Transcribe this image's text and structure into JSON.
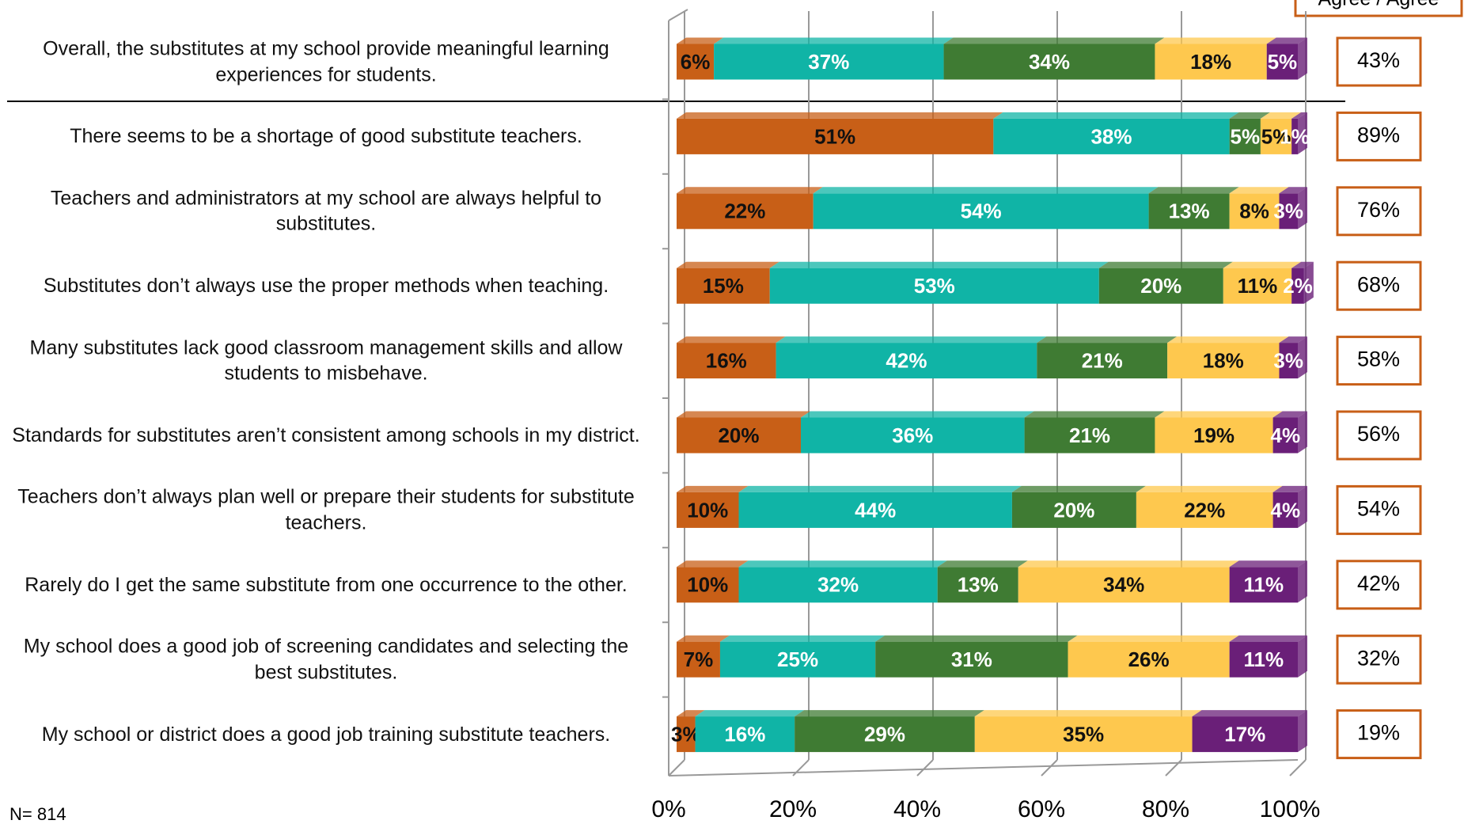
{
  "chart_data": {
    "type": "stacked-bar",
    "orientation": "horizontal",
    "column_header": "Agree / Agree",
    "note": "N= 814",
    "categories": [
      "Overall, the substitutes at my school provide meaningful learning experiences for students.",
      "There seems to be a shortage of good substitute teachers.",
      "Teachers and administrators at my school are always helpful to substitutes.",
      "Substitutes don’t always use the proper methods when teaching.",
      "Many substitutes lack good classroom management skills and allow students to misbehave.",
      "Standards for substitutes aren’t consistent among schools in my district.",
      "Teachers don’t always plan well or prepare their students for substitute teachers.",
      "Rarely do I get the same substitute from one occurrence to the other.",
      "My school does a good job of screening candidates and selecting the best substitutes.",
      "My school or district does a good job training substitute teachers."
    ],
    "series": [
      {
        "color": "#c85f17",
        "values": [
          6,
          51,
          22,
          15,
          16,
          20,
          10,
          10,
          7,
          3
        ],
        "value_labels": [
          "6%",
          "51%",
          "22%",
          "15%",
          "16%",
          "20%",
          "10%",
          "10%",
          "7%",
          "3%"
        ]
      },
      {
        "color": "#10b4a6",
        "values": [
          37,
          38,
          54,
          53,
          42,
          36,
          44,
          32,
          25,
          16
        ],
        "value_labels": [
          "37%",
          "38%",
          "54%",
          "53%",
          "42%",
          "36%",
          "44%",
          "32%",
          "25%",
          "16%"
        ]
      },
      {
        "color": "#3f7b33",
        "values": [
          34,
          5,
          13,
          20,
          21,
          21,
          20,
          13,
          31,
          29
        ],
        "value_labels": [
          "34%",
          "5%",
          "13%",
          "20%",
          "21%",
          "21%",
          "20%",
          "13%",
          "31%",
          "29%"
        ]
      },
      {
        "color": "#fec84e",
        "values": [
          18,
          5,
          8,
          11,
          18,
          19,
          22,
          34,
          26,
          35
        ],
        "value_labels": [
          "18%",
          "5%",
          "8%",
          "11%",
          "18%",
          "19%",
          "22%",
          "34%",
          "26%",
          "35%"
        ]
      },
      {
        "color": "#6a1f78",
        "values": [
          5,
          1,
          3,
          2,
          3,
          4,
          4,
          11,
          11,
          17
        ],
        "value_labels": [
          "5%",
          "1%",
          "3%",
          "2%",
          "3%",
          "4%",
          "4%",
          "11%",
          "11%",
          "17%"
        ]
      }
    ],
    "agree_totals": [
      43,
      89,
      76,
      68,
      58,
      56,
      54,
      42,
      32,
      19
    ],
    "agree_total_labels": [
      "43%",
      "89%",
      "76%",
      "68%",
      "58%",
      "56%",
      "54%",
      "42%",
      "32%",
      "19%"
    ],
    "xlim": [
      0,
      100
    ],
    "xticks": [
      {
        "value": 0,
        "label": "0%"
      },
      {
        "value": 20,
        "label": "20%"
      },
      {
        "value": 40,
        "label": "40%"
      },
      {
        "value": 60,
        "label": "60%"
      },
      {
        "value": 80,
        "label": "80%"
      },
      {
        "value": 100,
        "label": "100%"
      }
    ],
    "grid": true
  }
}
